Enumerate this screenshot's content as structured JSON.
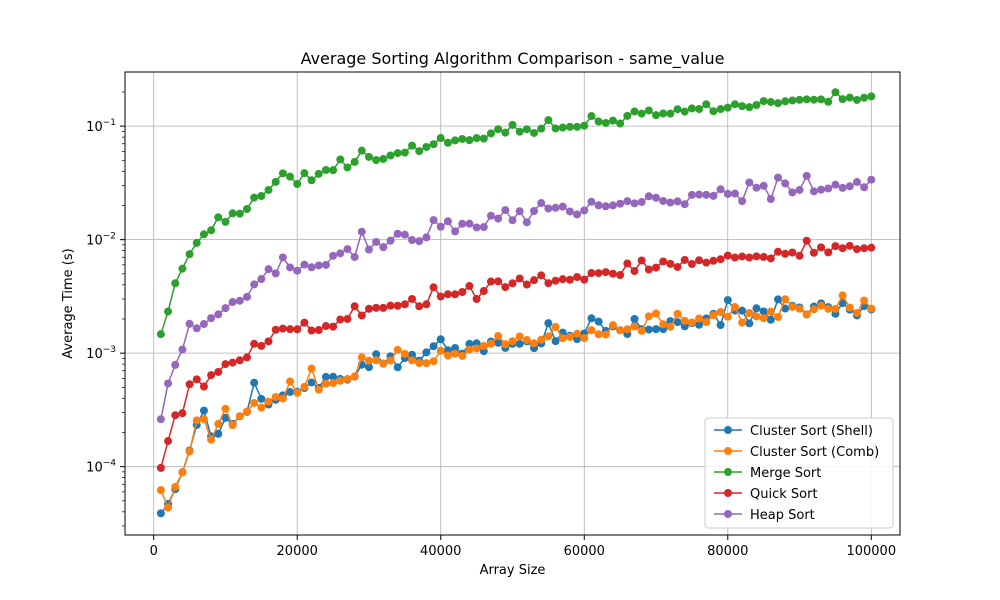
{
  "chart_data": {
    "type": "line",
    "title": "Average Sorting Algorithm Comparison - same_value",
    "xlabel": "Array Size",
    "ylabel": "Average Time (s)",
    "xlim": [
      -4000,
      104000
    ],
    "ylim": [
      2.5e-05,
      0.3
    ],
    "yscale": "log",
    "grid": true,
    "legend_position": "lower-right",
    "x_ticks": [
      0,
      20000,
      40000,
      60000,
      80000,
      100000
    ],
    "y_ticks": [
      {
        "value": 0.0001,
        "base": "10",
        "exp": "−4"
      },
      {
        "value": 0.001,
        "base": "10",
        "exp": "−3"
      },
      {
        "value": 0.01,
        "base": "10",
        "exp": "−2"
      },
      {
        "value": 0.1,
        "base": "10",
        "exp": "−1"
      }
    ],
    "x_start": 1000,
    "x_step": 1000,
    "series": [
      {
        "name": "Cluster Sort (Shell)",
        "color": "#1f77b4",
        "values": [
          3.88e-05,
          4.69e-05,
          6.33e-05,
          8.95e-05,
          0.0001389,
          0.000233,
          0.000312,
          0.000185,
          0.000195,
          0.000269,
          0.000238,
          0.000278,
          0.000304,
          0.000549,
          0.000396,
          0.000353,
          0.000388,
          0.000425,
          0.000455,
          0.000457,
          0.000493,
          0.000552,
          0.000494,
          0.000618,
          0.000619,
          0.000593,
          0.000584,
          0.000621,
          0.000791,
          0.000753,
          0.000979,
          0.000809,
          0.000937,
          0.000751,
          0.000905,
          0.000969,
          0.000859,
          0.001015,
          0.001152,
          0.001325,
          0.001061,
          0.001111,
          0.000991,
          0.001206,
          0.001222,
          0.001041,
          0.001267,
          0.001233,
          0.001113,
          0.00121,
          0.001208,
          0.001271,
          0.001108,
          0.001218,
          0.001837,
          0.001276,
          0.001517,
          0.001422,
          0.001328,
          0.001492,
          0.002028,
          0.001898,
          0.001568,
          0.001721,
          0.001596,
          0.001475,
          0.002001,
          0.001628,
          0.001613,
          0.001629,
          0.001628,
          0.001916,
          0.001878,
          0.001725,
          0.001839,
          0.001778,
          0.002025,
          0.002221,
          0.001769,
          0.002935,
          0.002372,
          0.002369,
          0.001832,
          0.002484,
          0.002328,
          0.001968,
          0.002978,
          0.002472,
          0.002619,
          0.002528,
          0.002195,
          0.002575,
          0.002747,
          0.002545,
          0.002225,
          0.002761,
          0.002418,
          0.002148,
          0.002598,
          0.002425
        ]
      },
      {
        "name": "Cluster Sort (Comb)",
        "color": "#ff7f0e",
        "values": [
          6.22e-05,
          4.36e-05,
          6.64e-05,
          8.9e-05,
          0.0001362,
          0.000256,
          0.000262,
          0.000173,
          0.000238,
          0.000324,
          0.000232,
          0.000278,
          0.000306,
          0.000364,
          0.000331,
          0.000374,
          0.000411,
          0.000398,
          0.000563,
          0.000448,
          0.000505,
          0.000732,
          0.000477,
          0.000537,
          0.000546,
          0.000571,
          0.000593,
          0.000624,
          0.000917,
          0.00086,
          0.000865,
          0.000808,
          0.000861,
          0.00107,
          0.000986,
          0.000863,
          0.000819,
          0.000817,
          0.000849,
          0.00105,
          0.000953,
          0.000989,
          0.000946,
          0.001075,
          0.0011,
          0.001159,
          0.00121,
          0.001417,
          0.001198,
          0.001274,
          0.001402,
          0.001305,
          0.001222,
          0.001311,
          0.001406,
          0.001703,
          0.001351,
          0.001392,
          0.001481,
          0.001357,
          0.001595,
          0.001467,
          0.00146,
          0.001768,
          0.001589,
          0.001624,
          0.001718,
          0.001571,
          0.00211,
          0.002237,
          0.001796,
          0.001707,
          0.002219,
          0.001926,
          0.001864,
          0.002022,
          0.001878,
          0.002162,
          0.002305,
          0.002095,
          0.002553,
          0.00186,
          0.00226,
          0.002106,
          0.002034,
          0.002324,
          0.002085,
          0.002986,
          0.002557,
          0.00246,
          0.002189,
          0.002436,
          0.002623,
          0.00246,
          0.002455,
          0.003226,
          0.002519,
          0.002263,
          0.002911,
          0.00247
        ]
      },
      {
        "name": "Merge Sort",
        "color": "#2ca02c",
        "values": [
          0.00147,
          0.00233,
          0.00413,
          0.00555,
          0.00745,
          0.00936,
          0.01115,
          0.01209,
          0.01574,
          0.01434,
          0.01708,
          0.01694,
          0.01864,
          0.02347,
          0.02425,
          0.02742,
          0.03229,
          0.03841,
          0.0359,
          0.03094,
          0.03858,
          0.03336,
          0.03802,
          0.04109,
          0.04096,
          0.05086,
          0.04324,
          0.04844,
          0.0608,
          0.0536,
          0.05025,
          0.05142,
          0.0552,
          0.0579,
          0.05848,
          0.06738,
          0.06029,
          0.06559,
          0.06934,
          0.07859,
          0.0714,
          0.07488,
          0.07714,
          0.0753,
          0.07848,
          0.0777,
          0.0864,
          0.09401,
          0.08767,
          0.10263,
          0.08933,
          0.09398,
          0.08713,
          0.09504,
          0.1131,
          0.09542,
          0.09711,
          0.09859,
          0.09866,
          0.10088,
          0.12283,
          0.10983,
          0.1067,
          0.11189,
          0.10552,
          0.1231,
          0.13471,
          0.12904,
          0.13743,
          0.12498,
          0.12943,
          0.12906,
          0.14096,
          0.1344,
          0.14326,
          0.14153,
          0.15598,
          0.13515,
          0.14153,
          0.14564,
          0.15603,
          0.15012,
          0.14694,
          0.15358,
          0.16631,
          0.16331,
          0.15948,
          0.16561,
          0.16842,
          0.17062,
          0.17224,
          0.17104,
          0.17233,
          0.16398,
          0.19909,
          0.1729,
          0.17852,
          0.1701,
          0.17804,
          0.18299
        ]
      },
      {
        "name": "Quick Sort",
        "color": "#d62728",
        "values": [
          9.76e-05,
          0.0001681,
          0.000284,
          0.000296,
          0.000532,
          0.000588,
          0.000508,
          0.000641,
          0.000683,
          0.000801,
          0.000826,
          0.000866,
          0.000917,
          0.001209,
          0.001159,
          0.001271,
          0.001608,
          0.001647,
          0.001627,
          0.001623,
          0.001858,
          0.001583,
          0.001598,
          0.001734,
          0.001713,
          0.001982,
          0.002002,
          0.00259,
          0.002147,
          0.00246,
          0.002508,
          0.002504,
          0.002624,
          0.002617,
          0.002695,
          0.003002,
          0.002587,
          0.002698,
          0.003806,
          0.003156,
          0.003305,
          0.0033,
          0.003458,
          0.003904,
          0.003001,
          0.003525,
          0.004274,
          0.004292,
          0.003822,
          0.004125,
          0.004548,
          0.004022,
          0.004398,
          0.00485,
          0.004139,
          0.004348,
          0.004486,
          0.004435,
          0.004685,
          0.004444,
          0.005082,
          0.005077,
          0.005181,
          0.005013,
          0.004879,
          0.006159,
          0.005294,
          0.006559,
          0.005457,
          0.00567,
          0.00642,
          0.006119,
          0.005745,
          0.006621,
          0.006098,
          0.006587,
          0.006269,
          0.006512,
          0.006728,
          0.007234,
          0.006961,
          0.007109,
          0.006958,
          0.007132,
          0.007046,
          0.006832,
          0.007826,
          0.007511,
          0.007707,
          0.00721,
          0.009779,
          0.007662,
          0.008548,
          0.007722,
          0.00877,
          0.008403,
          0.008824,
          0.008249,
          0.008405,
          0.008503
        ]
      },
      {
        "name": "Heap Sort",
        "color": "#9467bd",
        "values": [
          0.000262,
          0.000541,
          0.000788,
          0.001077,
          0.001815,
          0.001657,
          0.001806,
          0.002035,
          0.002197,
          0.002493,
          0.00282,
          0.002898,
          0.003133,
          0.004032,
          0.004499,
          0.005497,
          0.005045,
          0.006968,
          0.005687,
          0.005328,
          0.00603,
          0.005709,
          0.005923,
          0.005991,
          0.007201,
          0.007574,
          0.008262,
          0.007043,
          0.011752,
          0.008183,
          0.009548,
          0.008585,
          0.009805,
          0.011275,
          0.011068,
          0.009919,
          0.009708,
          0.010468,
          0.01488,
          0.012987,
          0.014511,
          0.011828,
          0.013791,
          0.013837,
          0.012804,
          0.012918,
          0.016247,
          0.015338,
          0.018215,
          0.014843,
          0.017816,
          0.014229,
          0.017889,
          0.021025,
          0.018813,
          0.019097,
          0.01955,
          0.017717,
          0.016694,
          0.018082,
          0.021581,
          0.020093,
          0.019669,
          0.020027,
          0.020725,
          0.02184,
          0.020891,
          0.021451,
          0.0241,
          0.023407,
          0.02193,
          0.021255,
          0.021749,
          0.020534,
          0.024783,
          0.024946,
          0.024823,
          0.02428,
          0.027792,
          0.025322,
          0.025493,
          0.021859,
          0.031905,
          0.028683,
          0.029821,
          0.022812,
          0.035188,
          0.031299,
          0.02604,
          0.027418,
          0.036462,
          0.026654,
          0.027534,
          0.028244,
          0.030524,
          0.028564,
          0.029513,
          0.032177,
          0.028932,
          0.033752
        ]
      }
    ]
  }
}
